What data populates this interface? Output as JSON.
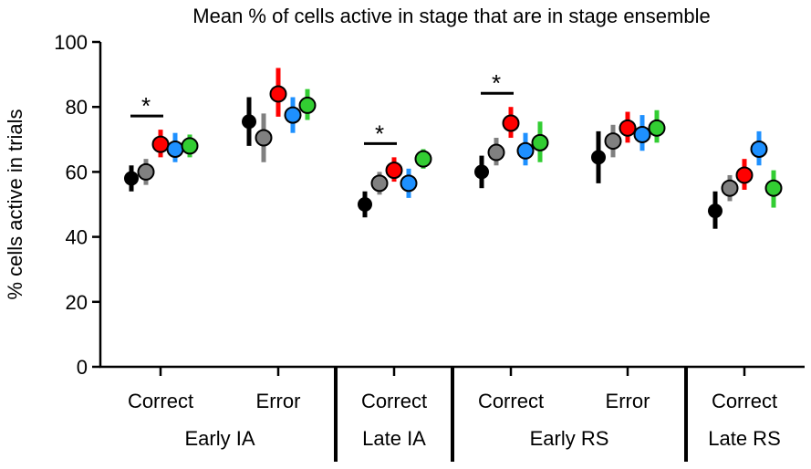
{
  "chart_data": {
    "type": "scatter",
    "title": "Mean % of cells active in stage that are in stage ensemble",
    "ylabel": "% cells active in trials",
    "xlabel": "",
    "ylim": [
      0,
      100
    ],
    "yticks": [
      "0",
      "20",
      "40",
      "60",
      "80",
      "100"
    ],
    "grid": false,
    "legend": "none",
    "stages": [
      {
        "label": "Early IA",
        "conditions": [
          "Correct",
          "Error"
        ]
      },
      {
        "label": "Late IA",
        "conditions": [
          "Correct"
        ]
      },
      {
        "label": "Early RS",
        "conditions": [
          "Correct",
          "Error"
        ]
      },
      {
        "label": "Late RS",
        "conditions": [
          "Correct"
        ]
      }
    ],
    "groups": [
      {
        "stage": "Early IA",
        "condition": "Correct",
        "significance": "*"
      },
      {
        "stage": "Early IA",
        "condition": "Error",
        "significance": ""
      },
      {
        "stage": "Late IA",
        "condition": "Correct",
        "significance": "*"
      },
      {
        "stage": "Early RS",
        "condition": "Correct",
        "significance": "*"
      },
      {
        "stage": "Early RS",
        "condition": "Error",
        "significance": ""
      },
      {
        "stage": "Late RS",
        "condition": "Correct",
        "significance": ""
      }
    ],
    "series_colors": [
      "#000000",
      "#808080",
      "#ff0000",
      "#1e90ff",
      "#32cd32"
    ],
    "series": [
      {
        "values": [
          58,
          75.5,
          50,
          60,
          64.5,
          48
        ],
        "lower": [
          54,
          68,
          46,
          55,
          56.5,
          42.5
        ],
        "upper": [
          62,
          83,
          54,
          65,
          72.5,
          54
        ]
      },
      {
        "values": [
          60,
          70.5,
          56.5,
          66,
          69.5,
          55
        ],
        "lower": [
          56,
          63,
          53,
          62,
          64.5,
          51
        ],
        "upper": [
          64,
          78,
          60,
          70.5,
          74.5,
          59
        ]
      },
      {
        "values": [
          68.5,
          84,
          60.5,
          75,
          73.5,
          59
        ],
        "lower": [
          64.5,
          77,
          57,
          70.5,
          69,
          54.5
        ],
        "upper": [
          73,
          92,
          64.5,
          80,
          78.5,
          64
        ]
      },
      {
        "values": [
          67,
          77.5,
          56.5,
          66.5,
          71.5,
          67
        ],
        "lower": [
          63,
          72,
          52,
          62,
          66.5,
          62
        ],
        "upper": [
          72,
          83,
          61,
          72,
          77.5,
          72.5
        ]
      },
      {
        "values": [
          68,
          80.5,
          64,
          69,
          73.5,
          55
        ],
        "lower": [
          64.5,
          76,
          61,
          63,
          69,
          49
        ],
        "upper": [
          71.5,
          85.5,
          67,
          75.5,
          79,
          60.5
        ]
      }
    ]
  }
}
